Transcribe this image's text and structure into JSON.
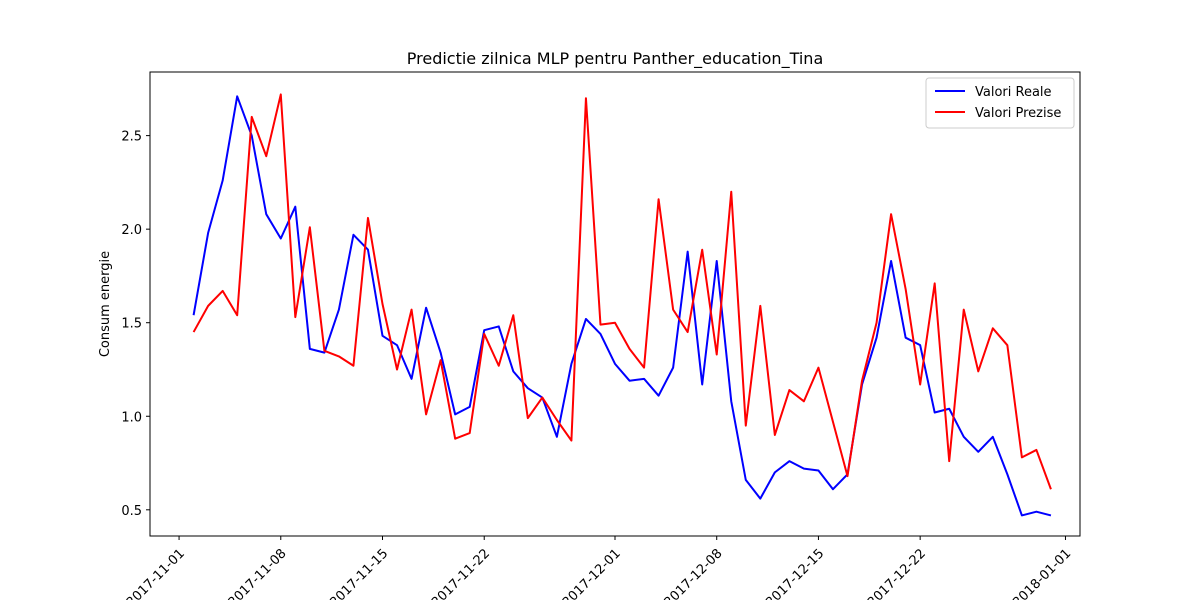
{
  "chart_data": {
    "type": "line",
    "title": "Predictie zilnica MLP pentru Panther_education_Tina",
    "xlabel": "",
    "ylabel": "Consum energie",
    "x_start": "2017-11-02",
    "x_end": "2017-12-31",
    "xlim": [
      "2017-10-30",
      "2018-01-02"
    ],
    "ylim": [
      0.36,
      2.84
    ],
    "x_ticks": [
      "2017-11-01",
      "2017-11-08",
      "2017-11-15",
      "2017-11-22",
      "2017-12-01",
      "2017-12-08",
      "2017-12-15",
      "2017-12-22",
      "2018-01-01"
    ],
    "y_ticks": [
      0.5,
      1.0,
      1.5,
      2.0,
      2.5
    ],
    "y_tick_labels": [
      "0.5",
      "1.0",
      "1.5",
      "2.0",
      "2.5"
    ],
    "grid": false,
    "legend_position": "top-right",
    "series": [
      {
        "name": "Valori Reale",
        "color": "#0000ff",
        "values": [
          1.54,
          1.98,
          2.26,
          2.71,
          2.5,
          2.08,
          1.95,
          2.12,
          1.36,
          1.34,
          1.57,
          1.97,
          1.89,
          1.43,
          1.38,
          1.2,
          1.58,
          1.34,
          1.01,
          1.05,
          1.46,
          1.48,
          1.24,
          1.15,
          1.1,
          0.89,
          1.28,
          1.52,
          1.44,
          1.28,
          1.19,
          1.2,
          1.11,
          1.26,
          1.88,
          1.17,
          1.83,
          1.08,
          0.66,
          0.56,
          0.7,
          0.76,
          0.72,
          0.71,
          0.61,
          0.69,
          1.17,
          1.42,
          1.83,
          1.42,
          1.38,
          1.02,
          1.04,
          0.89,
          0.81,
          0.89,
          0.69,
          0.47,
          0.49,
          0.47
        ]
      },
      {
        "name": "Valori Prezise",
        "color": "#ff0000",
        "values": [
          1.45,
          1.59,
          1.67,
          1.54,
          2.6,
          2.39,
          2.72,
          1.53,
          2.01,
          1.35,
          1.32,
          1.27,
          2.06,
          1.6,
          1.25,
          1.57,
          1.01,
          1.3,
          0.88,
          0.91,
          1.44,
          1.27,
          1.54,
          0.99,
          1.1,
          0.98,
          0.87,
          2.7,
          1.49,
          1.5,
          1.36,
          1.26,
          2.16,
          1.57,
          1.45,
          1.89,
          1.33,
          2.2,
          0.95,
          1.59,
          0.9,
          1.14,
          1.08,
          1.26,
          0.97,
          0.68,
          1.19,
          1.5,
          2.08,
          1.68,
          1.17,
          1.71,
          0.76,
          1.57,
          1.24,
          1.47,
          1.38,
          0.78,
          0.82,
          0.61
        ]
      }
    ]
  }
}
